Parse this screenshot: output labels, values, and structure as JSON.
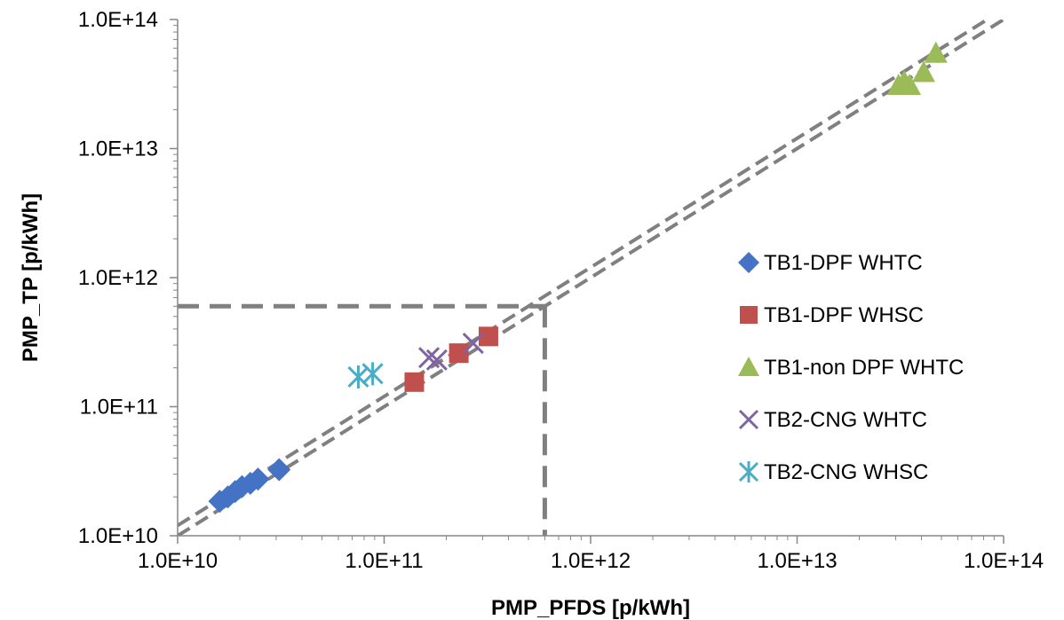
{
  "chart_data": {
    "type": "scatter",
    "xlabel": "PMP_PFDS [p/kWh]",
    "ylabel": "PMP_TP [p/kWh]",
    "xscale": "log",
    "yscale": "log",
    "xlim": [
      10000000000.0,
      100000000000000.0
    ],
    "ylim": [
      10000000000.0,
      100000000000000.0
    ],
    "x_tick_labels": [
      "1.0E+10",
      "1.0E+11",
      "1.0E+12",
      "1.0E+13",
      "1.0E+14"
    ],
    "y_tick_labels": [
      "1.0E+10",
      "1.0E+11",
      "1.0E+12",
      "1.0E+13",
      "1.0E+14"
    ],
    "grid": false,
    "legend_position": "right",
    "series": [
      {
        "name": "TB1-DPF WHTC",
        "marker": "diamond",
        "color": "#4472C4",
        "points": [
          [
            16000000000.0,
            18500000000.0
          ],
          [
            17500000000.0,
            20000000000.0
          ],
          [
            19000000000.0,
            22000000000.0
          ],
          [
            20500000000.0,
            24000000000.0
          ],
          [
            22500000000.0,
            25500000000.0
          ],
          [
            24500000000.0,
            27500000000.0
          ],
          [
            31000000000.0,
            32500000000.0
          ]
        ]
      },
      {
        "name": "TB1-DPF WHSC",
        "marker": "square",
        "color": "#C0504D",
        "points": [
          [
            140000000000.0,
            155000000000.0
          ],
          [
            230000000000.0,
            260000000000.0
          ],
          [
            320000000000.0,
            350000000000.0
          ]
        ]
      },
      {
        "name": "TB1-non DPF WHTC",
        "marker": "triangle",
        "color": "#9BBB59",
        "points": [
          [
            31000000000000.0,
            31000000000000.0
          ],
          [
            33000000000000.0,
            33000000000000.0
          ],
          [
            35000000000000.0,
            31000000000000.0
          ],
          [
            41000000000000.0,
            39000000000000.0
          ],
          [
            47000000000000.0,
            55000000000000.0
          ]
        ]
      },
      {
        "name": "TB2-CNG WHTC",
        "marker": "x",
        "color": "#8064A2",
        "points": [
          [
            165000000000.0,
            240000000000.0
          ],
          [
            180000000000.0,
            230000000000.0
          ],
          [
            270000000000.0,
            310000000000.0
          ]
        ]
      },
      {
        "name": "TB2-CNG WHSC",
        "marker": "asterisk",
        "color": "#4BACC6",
        "points": [
          [
            75000000000.0,
            170000000000.0
          ],
          [
            88000000000.0,
            180000000000.0
          ]
        ]
      }
    ],
    "reference_lines": [
      {
        "style": "dashed",
        "color": "#808080",
        "points": [
          [
            10000000000.0,
            12000000000.0
          ],
          [
            100000000000000.0,
            120000000000000.0
          ]
        ]
      },
      {
        "style": "dashed",
        "color": "#808080",
        "points": [
          [
            10000000000.0,
            10000000000.0
          ],
          [
            100000000000000.0,
            100000000000000.0
          ]
        ]
      },
      {
        "style": "dashed",
        "color": "#808080",
        "points": [
          [
            10000000000.0,
            600000000000.0
          ],
          [
            600000000000.0,
            600000000000.0
          ]
        ]
      },
      {
        "style": "dashed",
        "color": "#808080",
        "points": [
          [
            600000000000.0,
            600000000000.0
          ],
          [
            600000000000.0,
            10000000000.0
          ]
        ]
      }
    ]
  }
}
